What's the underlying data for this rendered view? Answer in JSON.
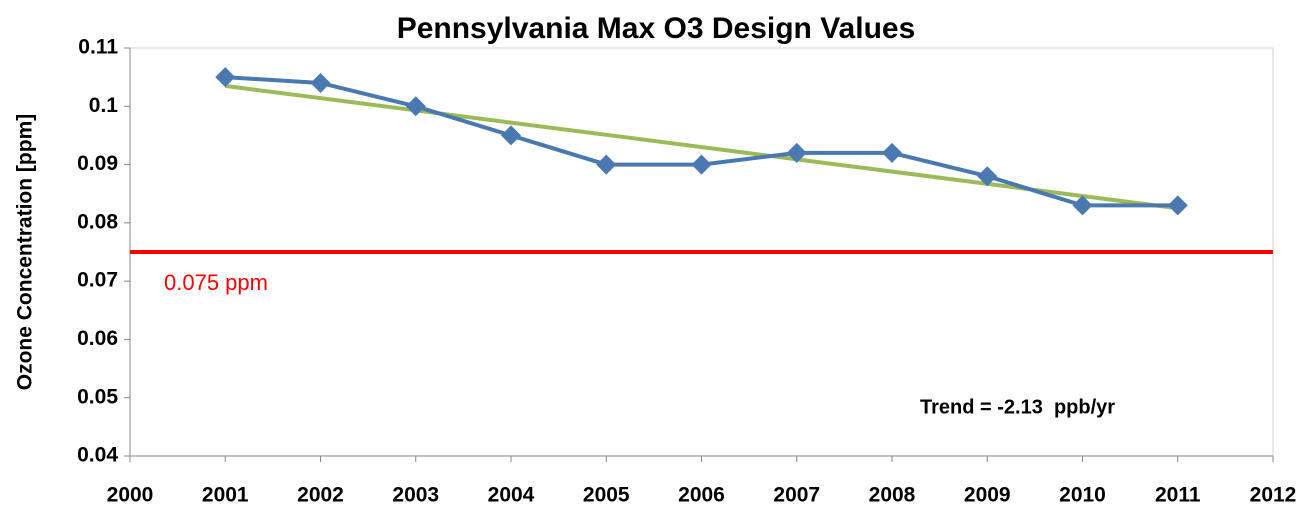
{
  "chart_data": {
    "type": "line",
    "title": "Pennsylvania Max O3 Design Values",
    "y_label": "Ozone Concentration [ppm]",
    "x": [
      2001,
      2002,
      2003,
      2004,
      2005,
      2006,
      2007,
      2008,
      2009,
      2010,
      2011
    ],
    "series": [
      {
        "color": "#4a78b0",
        "values": [
          0.105,
          0.104,
          0.1,
          0.095,
          0.09,
          0.09,
          0.092,
          0.092,
          0.088,
          0.083,
          0.083
        ]
      }
    ],
    "trend_line": {
      "color": "#9bbb59",
      "x": [
        2001,
        2011
      ],
      "values": [
        0.1035,
        0.0825
      ]
    },
    "reference_line": {
      "value": 0.075,
      "label": "0.075 ppm",
      "color": "#ff0000"
    },
    "annotation": "Trend = -2.13  ppb/yr",
    "xlim": [
      2000,
      2012
    ],
    "xticks": [
      2000,
      2001,
      2002,
      2003,
      2004,
      2005,
      2006,
      2007,
      2008,
      2009,
      2010,
      2011,
      2012
    ],
    "ylim": [
      0.04,
      0.11
    ],
    "yticks": [
      0.04,
      0.05,
      0.06,
      0.07,
      0.08,
      0.09,
      0.1,
      0.11
    ],
    "grid": false
  }
}
